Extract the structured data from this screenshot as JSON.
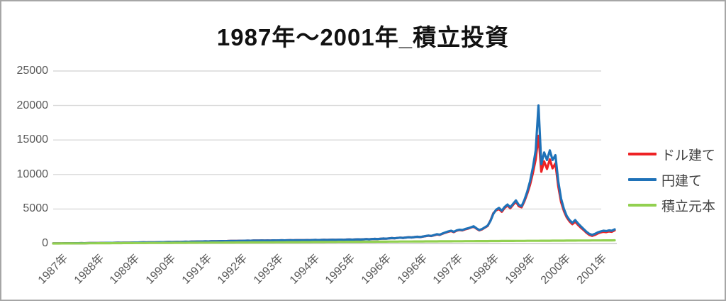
{
  "title": "1987年～2001年_積立投資",
  "colors": {
    "border": "#a6a6a6",
    "grid": "#d9d9d9",
    "axis_text": "#595959",
    "legend_text": "#404040",
    "title_text": "#111111"
  },
  "chart_data": {
    "type": "line",
    "title": "1987年～2001年_積立投資",
    "xlabel": "",
    "ylabel": "",
    "ylim": [
      0,
      25000
    ],
    "y_ticks": [
      0,
      5000,
      10000,
      15000,
      20000,
      25000
    ],
    "y_tick_labels": [
      "0",
      "5000",
      "10000",
      "15000",
      "20000",
      "25000"
    ],
    "grid": "horizontal",
    "legend_position": "right",
    "categories": [
      "1987年",
      "1988年",
      "1989年",
      "1990年",
      "1991年",
      "1992年",
      "1993年",
      "1994年",
      "1995年",
      "1996年",
      "1996年",
      "1997年",
      "1998年",
      "1999年",
      "2000年",
      "2001年"
    ],
    "series": [
      {
        "name": "ドル建て",
        "color": "#ee2224",
        "values": [
          15,
          18,
          22,
          20,
          26,
          30,
          34,
          32,
          38,
          44,
          48,
          46,
          55,
          60,
          68,
          64,
          74,
          82,
          78,
          88,
          96,
          92,
          104,
          112,
          108,
          120,
          128,
          124,
          136,
          144,
          140,
          152,
          160,
          156,
          168,
          176,
          172,
          186,
          196,
          192,
          206,
          216,
          210,
          224,
          236,
          230,
          244,
          256,
          250,
          266,
          278,
          290,
          284,
          298,
          310,
          302,
          318,
          330,
          322,
          340,
          352,
          344,
          362,
          375,
          368,
          382,
          395,
          386,
          402,
          415,
          405,
          422,
          435,
          425,
          440,
          430,
          445,
          435,
          450,
          440,
          455,
          465,
          452,
          468,
          478,
          462,
          475,
          488,
          470,
          485,
          495,
          480,
          500,
          512,
          496,
          515,
          528,
          510,
          530,
          545,
          525,
          548,
          560,
          540,
          565,
          580,
          555,
          585,
          605,
          580,
          610,
          635,
          610,
          645,
          670,
          650,
          690,
          720,
          695,
          740,
          780,
          755,
          800,
          840,
          810,
          860,
          905,
          875,
          930,
          980,
          930,
          1000,
          1060,
          1130,
          1080,
          1190,
          1310,
          1250,
          1420,
          1560,
          1700,
          1800,
          1650,
          1850,
          1950,
          1900,
          2050,
          2150,
          2300,
          2450,
          2150,
          1900,
          2050,
          2300,
          2550,
          3350,
          4400,
          4800,
          5000,
          4600,
          5150,
          5500,
          5100,
          5600,
          6050,
          5400,
          5250,
          6100,
          7200,
          8500,
          10200,
          12200,
          15600,
          10400,
          11900,
          10800,
          12200,
          10900,
          11600,
          8300,
          6000,
          4700,
          3800,
          3200,
          2800,
          3150,
          2700,
          2300,
          1950,
          1550,
          1250,
          1100,
          1250,
          1450,
          1600,
          1700,
          1650,
          1750,
          1700,
          1900
        ]
      },
      {
        "name": "円建て",
        "color": "#1f72b8",
        "values": [
          15,
          18,
          22,
          20,
          26,
          30,
          34,
          32,
          38,
          44,
          48,
          46,
          55,
          60,
          68,
          64,
          74,
          82,
          78,
          88,
          96,
          92,
          104,
          112,
          108,
          120,
          128,
          124,
          136,
          144,
          140,
          152,
          160,
          156,
          168,
          176,
          172,
          186,
          196,
          192,
          206,
          216,
          210,
          224,
          236,
          230,
          244,
          256,
          250,
          266,
          278,
          290,
          284,
          298,
          310,
          302,
          318,
          330,
          322,
          340,
          352,
          344,
          362,
          375,
          368,
          382,
          395,
          386,
          402,
          415,
          405,
          422,
          435,
          425,
          440,
          430,
          445,
          435,
          450,
          440,
          455,
          465,
          452,
          468,
          478,
          462,
          475,
          488,
          470,
          485,
          495,
          480,
          500,
          512,
          496,
          515,
          528,
          510,
          530,
          545,
          525,
          548,
          560,
          540,
          565,
          580,
          555,
          585,
          605,
          580,
          610,
          635,
          610,
          645,
          670,
          650,
          690,
          720,
          695,
          740,
          780,
          755,
          800,
          840,
          810,
          860,
          905,
          875,
          930,
          980,
          940,
          1010,
          1080,
          1150,
          1100,
          1220,
          1350,
          1280,
          1450,
          1600,
          1750,
          1850,
          1700,
          1900,
          2000,
          1950,
          2100,
          2200,
          2350,
          2500,
          2200,
          1950,
          2100,
          2350,
          2600,
          3300,
          4300,
          4900,
          5150,
          4750,
          5300,
          5650,
          5250,
          5750,
          6250,
          5600,
          5400,
          6300,
          7500,
          9000,
          11000,
          13500,
          20000,
          11500,
          13200,
          12100,
          13500,
          12100,
          12800,
          9000,
          6500,
          5000,
          4000,
          3400,
          3000,
          3400,
          2900,
          2500,
          2100,
          1700,
          1400,
          1250,
          1400,
          1600,
          1750,
          1850,
          1800,
          1900,
          1850,
          2050
        ]
      },
      {
        "name": "積立元本",
        "color": "#92d050",
        "values": [
          0,
          2,
          5,
          7,
          9,
          12,
          14,
          16,
          18,
          21,
          23,
          25,
          28,
          30,
          32,
          35,
          37,
          39,
          41,
          44,
          46,
          48,
          51,
          53,
          55,
          58,
          60,
          62,
          64,
          67,
          69,
          71,
          74,
          76,
          78,
          81,
          83,
          85,
          87,
          90,
          92,
          94,
          97,
          99,
          101,
          104,
          106,
          108,
          110,
          113,
          115,
          117,
          120,
          122,
          124,
          127,
          129,
          131,
          133,
          136,
          138,
          140,
          143,
          145,
          147,
          150,
          152,
          154,
          156,
          159,
          161,
          163,
          166,
          168,
          170,
          173,
          175,
          177,
          179,
          182,
          184,
          186,
          189,
          191,
          193,
          196,
          198,
          200,
          202,
          205,
          207,
          209,
          212,
          214,
          216,
          219,
          221,
          223,
          225,
          228,
          230,
          232,
          235,
          237,
          239,
          242,
          244,
          246,
          248,
          251,
          253,
          255,
          258,
          260,
          262,
          265,
          267,
          269,
          271,
          274,
          276,
          278,
          281,
          283,
          285,
          288,
          290,
          292,
          294,
          297,
          299,
          301,
          304,
          306,
          308,
          311,
          313,
          315,
          317,
          320,
          322,
          324,
          327,
          329,
          331,
          334,
          336,
          338,
          340,
          343,
          345,
          347,
          350,
          352,
          354,
          357,
          359,
          361,
          363,
          366,
          368,
          370,
          373,
          375,
          377,
          380,
          382,
          384,
          386,
          389,
          391,
          393,
          396,
          398,
          400,
          403,
          405,
          407,
          409,
          412,
          414,
          416,
          419,
          421,
          423,
          426,
          428,
          430,
          432,
          435,
          437,
          439,
          442,
          444,
          446,
          449,
          451,
          453,
          455,
          458
        ]
      }
    ]
  }
}
